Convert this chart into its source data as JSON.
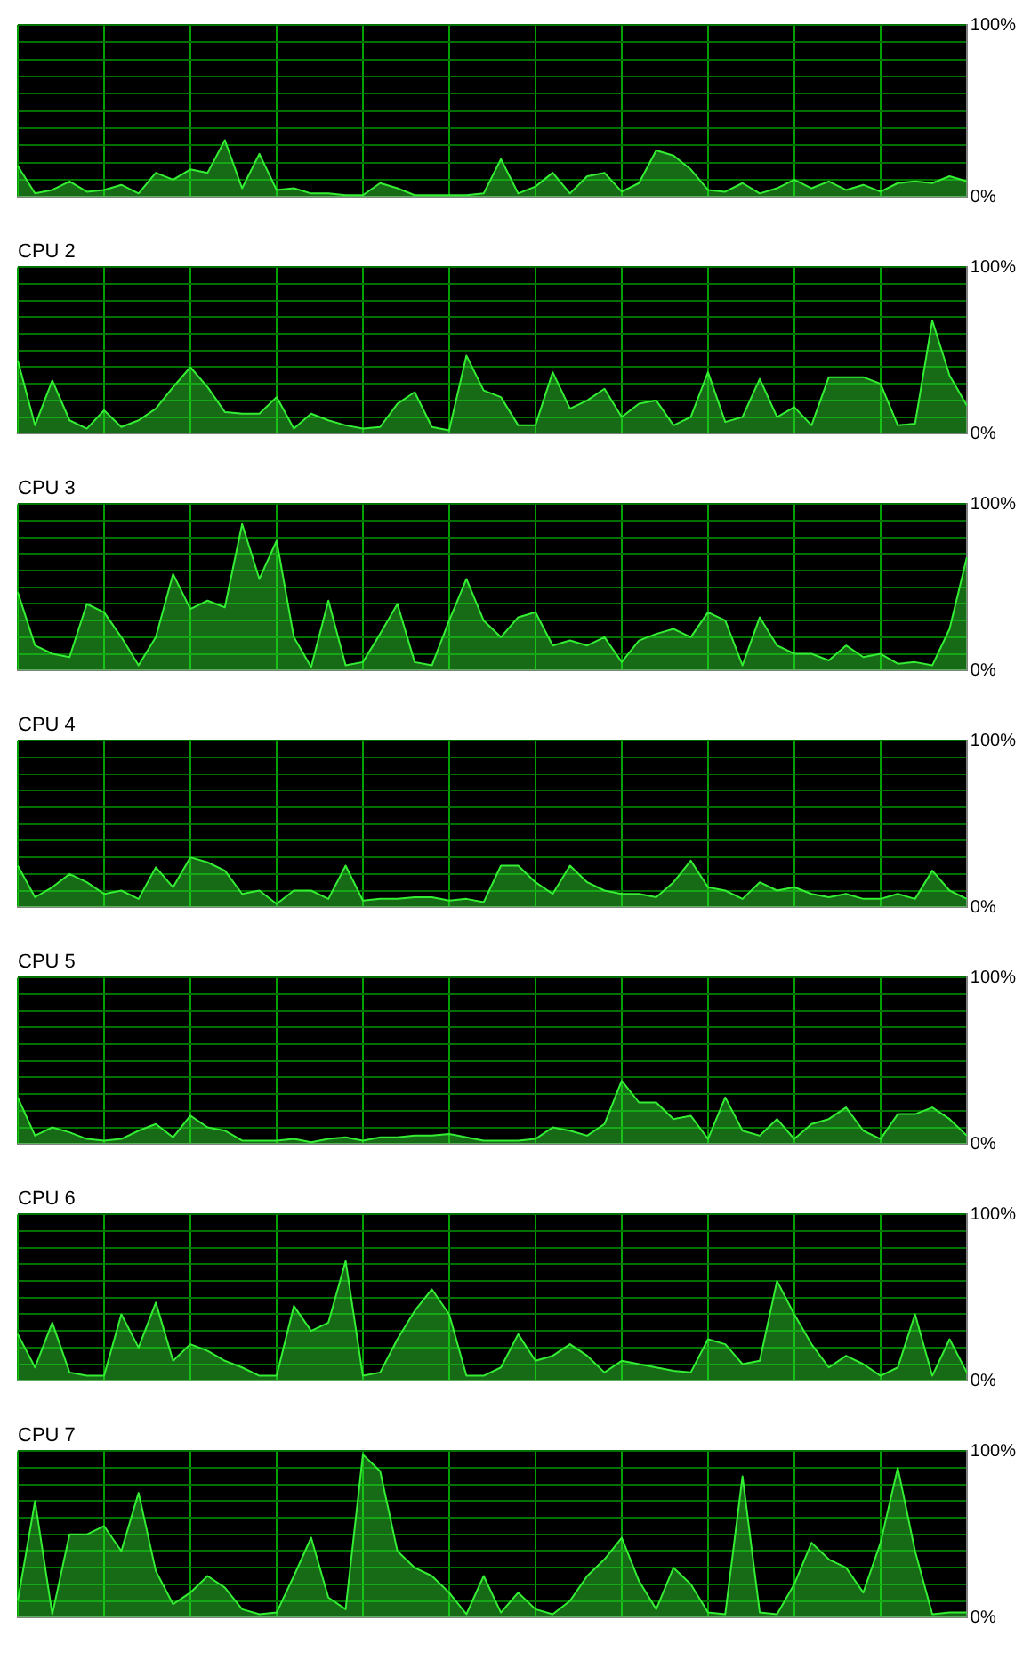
{
  "chart_data": [
    {
      "type": "area",
      "categories": [
        null,
        null,
        null,
        null,
        null,
        null,
        null,
        null,
        null,
        null,
        null,
        null,
        null,
        null,
        null,
        null,
        null,
        null,
        null,
        null,
        null,
        null,
        null,
        null,
        null,
        null,
        null,
        null,
        null,
        null,
        null,
        null,
        null,
        null,
        null,
        null,
        null,
        null,
        null,
        null,
        null,
        null,
        null,
        null,
        null,
        null,
        null,
        null,
        null,
        null,
        null,
        null,
        null,
        null,
        null,
        null
      ],
      "ylim": [
        0,
        100
      ],
      "yticks": [
        {
          "value": 0,
          "label": "0%"
        },
        {
          "value": 10,
          "label": null
        },
        {
          "value": 20,
          "label": null
        },
        {
          "value": 30,
          "label": null
        },
        {
          "value": 40,
          "label": null
        },
        {
          "value": 50,
          "label": null
        },
        {
          "value": 60,
          "label": null
        },
        {
          "value": 70,
          "label": null
        },
        {
          "value": 80,
          "label": null
        },
        {
          "value": 90,
          "label": null
        },
        {
          "value": 100,
          "label": "100%"
        }
      ],
      "grid": true,
      "series": [
        {
          "color": "#33ee33",
          "values": [
            18,
            2,
            4,
            9,
            3,
            4,
            7,
            2,
            14,
            10,
            16,
            14,
            33,
            5,
            25,
            4,
            5,
            2,
            2,
            1,
            1,
            8,
            5,
            1,
            1,
            1,
            1,
            2,
            22,
            2,
            6,
            14,
            2,
            12,
            14,
            3,
            8,
            27,
            24,
            16,
            4,
            3,
            8,
            2,
            5,
            10,
            5,
            9,
            4,
            7,
            3,
            8,
            9,
            8,
            12,
            9
          ]
        }
      ]
    },
    {
      "type": "area",
      "title": "CPU 2",
      "categories": [
        null,
        null,
        null,
        null,
        null,
        null,
        null,
        null,
        null,
        null,
        null,
        null,
        null,
        null,
        null,
        null,
        null,
        null,
        null,
        null,
        null,
        null,
        null,
        null,
        null,
        null,
        null,
        null,
        null,
        null,
        null,
        null,
        null,
        null,
        null,
        null,
        null,
        null,
        null,
        null,
        null,
        null,
        null,
        null,
        null,
        null,
        null,
        null,
        null,
        null,
        null,
        null,
        null,
        null,
        null,
        null
      ],
      "ylim": [
        0,
        100
      ],
      "yticks": [
        {
          "value": 0,
          "label": "0%"
        },
        {
          "value": 10,
          "label": null
        },
        {
          "value": 20,
          "label": null
        },
        {
          "value": 30,
          "label": null
        },
        {
          "value": 40,
          "label": null
        },
        {
          "value": 50,
          "label": null
        },
        {
          "value": 60,
          "label": null
        },
        {
          "value": 70,
          "label": null
        },
        {
          "value": 80,
          "label": null
        },
        {
          "value": 90,
          "label": null
        },
        {
          "value": 100,
          "label": "100%"
        }
      ],
      "grid": true,
      "series": [
        {
          "color": "#33ee33",
          "values": [
            44,
            5,
            32,
            8,
            3,
            14,
            4,
            8,
            15,
            28,
            40,
            28,
            13,
            12,
            12,
            22,
            3,
            12,
            8,
            5,
            3,
            4,
            18,
            25,
            4,
            2,
            47,
            26,
            22,
            5,
            5,
            37,
            15,
            20,
            27,
            10,
            18,
            20,
            5,
            10,
            37,
            7,
            10,
            33,
            10,
            16,
            5,
            34,
            34,
            34,
            30,
            5,
            6,
            68,
            35,
            17
          ]
        }
      ]
    },
    {
      "type": "area",
      "title": "CPU 3",
      "categories": [
        null,
        null,
        null,
        null,
        null,
        null,
        null,
        null,
        null,
        null,
        null,
        null,
        null,
        null,
        null,
        null,
        null,
        null,
        null,
        null,
        null,
        null,
        null,
        null,
        null,
        null,
        null,
        null,
        null,
        null,
        null,
        null,
        null,
        null,
        null,
        null,
        null,
        null,
        null,
        null,
        null,
        null,
        null,
        null,
        null,
        null,
        null,
        null,
        null,
        null,
        null,
        null,
        null,
        null,
        null,
        null
      ],
      "ylim": [
        0,
        100
      ],
      "yticks": [
        {
          "value": 0,
          "label": "0%"
        },
        {
          "value": 10,
          "label": null
        },
        {
          "value": 20,
          "label": null
        },
        {
          "value": 30,
          "label": null
        },
        {
          "value": 40,
          "label": null
        },
        {
          "value": 50,
          "label": null
        },
        {
          "value": 60,
          "label": null
        },
        {
          "value": 70,
          "label": null
        },
        {
          "value": 80,
          "label": null
        },
        {
          "value": 90,
          "label": null
        },
        {
          "value": 100,
          "label": "100%"
        }
      ],
      "grid": true,
      "series": [
        {
          "color": "#33ee33",
          "values": [
            47,
            15,
            10,
            8,
            40,
            35,
            20,
            3,
            20,
            58,
            37,
            42,
            38,
            88,
            55,
            78,
            20,
            2,
            42,
            3,
            5,
            22,
            40,
            5,
            3,
            30,
            55,
            30,
            20,
            32,
            35,
            15,
            18,
            15,
            20,
            5,
            18,
            22,
            25,
            20,
            35,
            30,
            3,
            32,
            15,
            10,
            10,
            6,
            15,
            8,
            10,
            4,
            5,
            3,
            25,
            68
          ]
        }
      ]
    },
    {
      "type": "area",
      "title": "CPU 4",
      "categories": [
        null,
        null,
        null,
        null,
        null,
        null,
        null,
        null,
        null,
        null,
        null,
        null,
        null,
        null,
        null,
        null,
        null,
        null,
        null,
        null,
        null,
        null,
        null,
        null,
        null,
        null,
        null,
        null,
        null,
        null,
        null,
        null,
        null,
        null,
        null,
        null,
        null,
        null,
        null,
        null,
        null,
        null,
        null,
        null,
        null,
        null,
        null,
        null,
        null,
        null,
        null,
        null,
        null,
        null,
        null,
        null
      ],
      "ylim": [
        0,
        100
      ],
      "yticks": [
        {
          "value": 0,
          "label": "0%"
        },
        {
          "value": 10,
          "label": null
        },
        {
          "value": 20,
          "label": null
        },
        {
          "value": 30,
          "label": null
        },
        {
          "value": 40,
          "label": null
        },
        {
          "value": 50,
          "label": null
        },
        {
          "value": 60,
          "label": null
        },
        {
          "value": 70,
          "label": null
        },
        {
          "value": 80,
          "label": null
        },
        {
          "value": 90,
          "label": null
        },
        {
          "value": 100,
          "label": "100%"
        }
      ],
      "grid": true,
      "series": [
        {
          "color": "#33ee33",
          "values": [
            25,
            6,
            12,
            20,
            15,
            8,
            10,
            5,
            24,
            12,
            30,
            27,
            22,
            8,
            10,
            2,
            10,
            10,
            5,
            25,
            4,
            5,
            5,
            6,
            6,
            4,
            5,
            3,
            25,
            25,
            15,
            8,
            25,
            15,
            10,
            8,
            8,
            6,
            15,
            28,
            12,
            10,
            5,
            15,
            10,
            12,
            8,
            6,
            8,
            5,
            5,
            8,
            5,
            22,
            10,
            5
          ]
        }
      ]
    },
    {
      "type": "area",
      "title": "CPU 5",
      "categories": [
        null,
        null,
        null,
        null,
        null,
        null,
        null,
        null,
        null,
        null,
        null,
        null,
        null,
        null,
        null,
        null,
        null,
        null,
        null,
        null,
        null,
        null,
        null,
        null,
        null,
        null,
        null,
        null,
        null,
        null,
        null,
        null,
        null,
        null,
        null,
        null,
        null,
        null,
        null,
        null,
        null,
        null,
        null,
        null,
        null,
        null,
        null,
        null,
        null,
        null,
        null,
        null,
        null,
        null,
        null,
        null
      ],
      "ylim": [
        0,
        100
      ],
      "yticks": [
        {
          "value": 0,
          "label": "0%"
        },
        {
          "value": 10,
          "label": null
        },
        {
          "value": 20,
          "label": null
        },
        {
          "value": 30,
          "label": null
        },
        {
          "value": 40,
          "label": null
        },
        {
          "value": 50,
          "label": null
        },
        {
          "value": 60,
          "label": null
        },
        {
          "value": 70,
          "label": null
        },
        {
          "value": 80,
          "label": null
        },
        {
          "value": 90,
          "label": null
        },
        {
          "value": 100,
          "label": "100%"
        }
      ],
      "grid": true,
      "series": [
        {
          "color": "#33ee33",
          "values": [
            28,
            5,
            10,
            7,
            3,
            2,
            3,
            8,
            12,
            4,
            17,
            10,
            8,
            2,
            2,
            2,
            3,
            1,
            3,
            4,
            2,
            4,
            4,
            5,
            5,
            6,
            4,
            2,
            2,
            2,
            3,
            10,
            8,
            5,
            12,
            38,
            25,
            25,
            15,
            17,
            3,
            28,
            8,
            5,
            15,
            3,
            12,
            15,
            22,
            8,
            3,
            18,
            18,
            22,
            15,
            5
          ]
        }
      ]
    },
    {
      "type": "area",
      "title": "CPU 6",
      "categories": [
        null,
        null,
        null,
        null,
        null,
        null,
        null,
        null,
        null,
        null,
        null,
        null,
        null,
        null,
        null,
        null,
        null,
        null,
        null,
        null,
        null,
        null,
        null,
        null,
        null,
        null,
        null,
        null,
        null,
        null,
        null,
        null,
        null,
        null,
        null,
        null,
        null,
        null,
        null,
        null,
        null,
        null,
        null,
        null,
        null,
        null,
        null,
        null,
        null,
        null,
        null,
        null,
        null,
        null,
        null,
        null
      ],
      "ylim": [
        0,
        100
      ],
      "yticks": [
        {
          "value": 0,
          "label": "0%"
        },
        {
          "value": 10,
          "label": null
        },
        {
          "value": 20,
          "label": null
        },
        {
          "value": 30,
          "label": null
        },
        {
          "value": 40,
          "label": null
        },
        {
          "value": 50,
          "label": null
        },
        {
          "value": 60,
          "label": null
        },
        {
          "value": 70,
          "label": null
        },
        {
          "value": 80,
          "label": null
        },
        {
          "value": 90,
          "label": null
        },
        {
          "value": 100,
          "label": "100%"
        }
      ],
      "grid": true,
      "series": [
        {
          "color": "#33ee33",
          "values": [
            28,
            8,
            35,
            5,
            3,
            3,
            40,
            20,
            47,
            12,
            22,
            18,
            12,
            8,
            3,
            3,
            45,
            30,
            35,
            72,
            3,
            5,
            25,
            42,
            55,
            40,
            3,
            3,
            8,
            28,
            12,
            15,
            22,
            15,
            5,
            12,
            10,
            8,
            6,
            5,
            25,
            22,
            10,
            12,
            60,
            40,
            22,
            8,
            15,
            10,
            3,
            8,
            40,
            3,
            25,
            5
          ]
        }
      ]
    },
    {
      "type": "area",
      "title": "CPU 7",
      "categories": [
        null,
        null,
        null,
        null,
        null,
        null,
        null,
        null,
        null,
        null,
        null,
        null,
        null,
        null,
        null,
        null,
        null,
        null,
        null,
        null,
        null,
        null,
        null,
        null,
        null,
        null,
        null,
        null,
        null,
        null,
        null,
        null,
        null,
        null,
        null,
        null,
        null,
        null,
        null,
        null,
        null,
        null,
        null,
        null,
        null,
        null,
        null,
        null,
        null,
        null,
        null,
        null,
        null,
        null,
        null,
        null
      ],
      "ylim": [
        0,
        100
      ],
      "yticks": [
        {
          "value": 0,
          "label": "0%"
        },
        {
          "value": 10,
          "label": null
        },
        {
          "value": 20,
          "label": null
        },
        {
          "value": 30,
          "label": null
        },
        {
          "value": 40,
          "label": null
        },
        {
          "value": 50,
          "label": null
        },
        {
          "value": 60,
          "label": null
        },
        {
          "value": 70,
          "label": null
        },
        {
          "value": 80,
          "label": null
        },
        {
          "value": 90,
          "label": null
        },
        {
          "value": 100,
          "label": "100%"
        }
      ],
      "grid": true,
      "series": [
        {
          "color": "#33ee33",
          "values": [
            10,
            70,
            2,
            50,
            50,
            55,
            40,
            75,
            28,
            8,
            15,
            25,
            18,
            5,
            2,
            3,
            25,
            48,
            12,
            5,
            98,
            88,
            40,
            30,
            25,
            15,
            2,
            25,
            3,
            15,
            5,
            2,
            10,
            25,
            35,
            48,
            22,
            5,
            30,
            20,
            3,
            2,
            85,
            3,
            2,
            20,
            45,
            35,
            30,
            15,
            45,
            90,
            40,
            2,
            3,
            3
          ]
        }
      ]
    }
  ]
}
